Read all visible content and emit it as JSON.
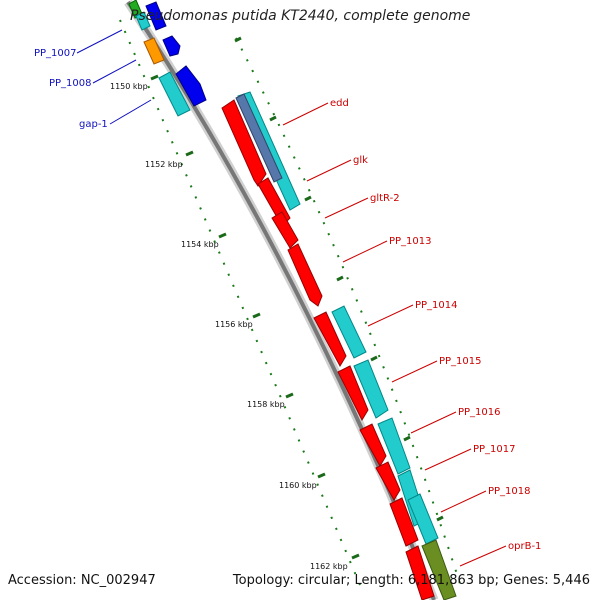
{
  "title": "Pseudomonas putida KT2440, complete genome",
  "footer": {
    "accession": "Accession: NC_002947",
    "topology": "Topology: circular; Length: 6,181,863 bp; Genes: 5,446"
  },
  "ticks": [
    "1150 kbp",
    "1152 kbp",
    "1154 kbp",
    "1156 kbp",
    "1158 kbp",
    "1160 kbp",
    "1162 kbp"
  ],
  "left_genes": [
    "PP_1007",
    "PP_1008",
    "gap-1"
  ],
  "right_genes": [
    "edd",
    "glk",
    "gltR-2",
    "PP_1013",
    "PP_1014",
    "PP_1015",
    "PP_1016",
    "PP_1017",
    "PP_1018",
    "oprB-1"
  ],
  "colors": {
    "left_label": "#1010c0",
    "right_label": "#cc0000",
    "red_feature": "#ff0000",
    "cyan_feature": "#22cccc",
    "blue_feature": "#0000ee",
    "orange_feature": "#ff9900",
    "olive_feature": "#6b8e23",
    "backbone": "#777777",
    "ruler": "#1a7a1a"
  }
}
